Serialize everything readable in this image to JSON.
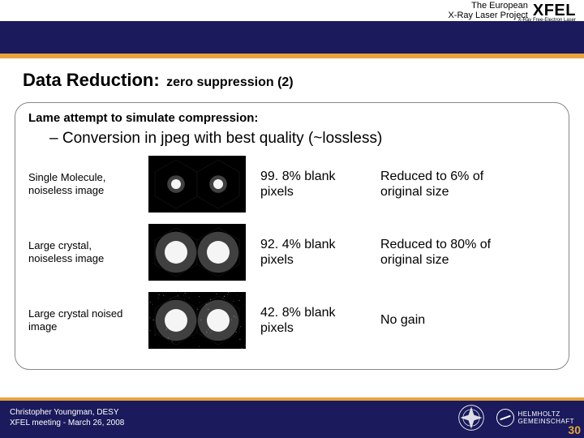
{
  "header": {
    "project_line1": "The European",
    "project_line2": "X-Ray Laser Project",
    "logo": "XFEL",
    "logo_sub": "X-Ray Free-Electron Laser"
  },
  "title": {
    "main": "Data Reduction:",
    "sub": "zero suppression (2)"
  },
  "content": {
    "lame": "Lame attempt to simulate compression:",
    "conversion": "– Conversion in jpeg with best quality (~lossless)",
    "rows": [
      {
        "label": "Single Molecule, noiseless image",
        "blank": "99. 8% blank pixels",
        "reduced": "Reduced to 6% of original size",
        "glow": 6,
        "noise": false
      },
      {
        "label": "Large crystal, noiseless image",
        "blank": "92. 4% blank pixels",
        "reduced": "Reduced to 80% of original size",
        "glow": 14,
        "noise": false
      },
      {
        "label": "Large crystal noised image",
        "blank": "42. 8% blank pixels",
        "reduced": "No gain",
        "glow": 14,
        "noise": true
      }
    ]
  },
  "footer": {
    "author": "Christopher Youngman, DESY",
    "meeting": "XFEL meeting  -  March 26, 2008",
    "page": "30",
    "helmholtz": "HELMHOLTZ",
    "gemeinschaft": "GEMEINSCHAFT"
  },
  "colors": {
    "navy": "#1a1a5c",
    "orange": "#e8a33d",
    "hex_fill": "#000000",
    "glow": "#ffffff"
  }
}
